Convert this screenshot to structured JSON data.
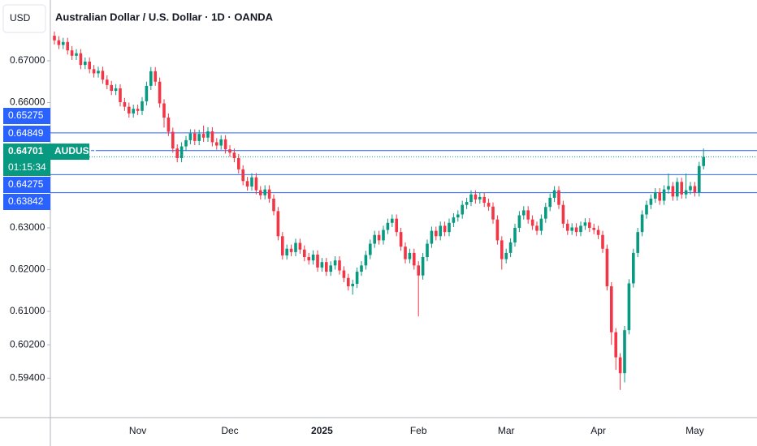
{
  "chart_data": {
    "type": "candlestick",
    "title": "Australian Dollar / U.S. Dollar · 1D · OANDA",
    "currency": "USD",
    "symbol": "AUDUSD",
    "countdown": "01:15:34",
    "up_color": "#089981",
    "down_color": "#f23645",
    "level_color": "#2962ff",
    "grid": false,
    "categories": [
      null,
      null,
      null,
      null,
      null,
      null,
      null,
      null,
      null,
      null,
      null,
      null,
      null,
      null,
      null,
      null,
      null,
      null,
      null,
      "Nov",
      null,
      null,
      null,
      null,
      null,
      null,
      null,
      null,
      null,
      null,
      null,
      null,
      null,
      null,
      null,
      null,
      null,
      null,
      null,
      null,
      "Dec",
      null,
      null,
      null,
      null,
      null,
      null,
      null,
      null,
      null,
      null,
      null,
      null,
      null,
      null,
      null,
      null,
      null,
      null,
      null,
      null,
      "2025",
      null,
      null,
      null,
      null,
      null,
      null,
      null,
      null,
      null,
      null,
      null,
      null,
      null,
      null,
      null,
      null,
      null,
      null,
      null,
      null,
      null,
      "Feb",
      null,
      null,
      null,
      null,
      null,
      null,
      null,
      null,
      null,
      null,
      null,
      null,
      null,
      null,
      null,
      null,
      null,
      null,
      null,
      "Mar",
      null,
      null,
      null,
      null,
      null,
      null,
      null,
      null,
      null,
      null,
      null,
      null,
      null,
      null,
      null,
      null,
      null,
      null,
      null,
      null,
      "Apr",
      null,
      null,
      null,
      null,
      null,
      null,
      null,
      null,
      null,
      null,
      null,
      null,
      null,
      null,
      null,
      null,
      null,
      null,
      null,
      null,
      null,
      "May",
      null,
      null
    ],
    "open": [
      0.676,
      0.6749,
      0.6738,
      0.6745,
      0.6725,
      0.6712,
      0.6718,
      0.669,
      0.6698,
      0.668,
      0.667,
      0.6676,
      0.6655,
      0.6642,
      0.6628,
      0.6634,
      0.6601,
      0.659,
      0.6574,
      0.6585,
      0.658,
      0.6603,
      0.664,
      0.6675,
      0.665,
      0.6598,
      0.6564,
      0.653,
      0.649,
      0.6467,
      0.6495,
      0.651,
      0.6526,
      0.6508,
      0.6525,
      0.6516,
      0.6531,
      0.6505,
      0.6497,
      0.6512,
      0.6488,
      0.648,
      0.6467,
      0.644,
      0.6412,
      0.6399,
      0.6421,
      0.639,
      0.6378,
      0.6392,
      0.637,
      0.634,
      0.628,
      0.6234,
      0.625,
      0.6242,
      0.6264,
      0.6248,
      0.623,
      0.6222,
      0.6236,
      0.6205,
      0.6218,
      0.6195,
      0.621,
      0.6222,
      0.6198,
      0.618,
      0.616,
      0.6166,
      0.6195,
      0.621,
      0.6235,
      0.6262,
      0.6283,
      0.627,
      0.6295,
      0.6312,
      0.6322,
      0.629,
      0.6255,
      0.6225,
      0.624,
      0.621,
      0.6186,
      0.623,
      0.6262,
      0.6293,
      0.628,
      0.6305,
      0.629,
      0.6312,
      0.6325,
      0.6332,
      0.6355,
      0.6362,
      0.638,
      0.6368,
      0.6374,
      0.636,
      0.6351,
      0.632,
      0.627,
      0.6225,
      0.624,
      0.6265,
      0.63,
      0.633,
      0.6342,
      0.632,
      0.6305,
      0.6293,
      0.6322,
      0.635,
      0.6372,
      0.639,
      0.6355,
      0.631,
      0.6293,
      0.6301,
      0.629,
      0.6305,
      0.6313,
      0.63,
      0.6295,
      0.6283,
      0.625,
      0.616,
      0.605,
      0.599,
      0.5952,
      0.6055,
      0.6167,
      0.624,
      0.629,
      0.6332,
      0.6355,
      0.637,
      0.6385,
      0.6365,
      0.6392,
      0.64,
      0.6375,
      0.641,
      0.638,
      0.639,
      0.64,
      0.6385,
      0.6448
    ],
    "high": [
      0.677,
      0.6759,
      0.6755,
      0.6755,
      0.6735,
      0.6728,
      0.6728,
      0.6708,
      0.6708,
      0.669,
      0.6686,
      0.6686,
      0.6665,
      0.6652,
      0.6644,
      0.6644,
      0.6611,
      0.66,
      0.6595,
      0.6595,
      0.6613,
      0.665,
      0.6685,
      0.6685,
      0.666,
      0.6608,
      0.6574,
      0.654,
      0.65,
      0.6505,
      0.652,
      0.6536,
      0.6536,
      0.6535,
      0.6545,
      0.6541,
      0.6541,
      0.6515,
      0.6522,
      0.6522,
      0.6498,
      0.649,
      0.6477,
      0.645,
      0.6422,
      0.6431,
      0.6431,
      0.64,
      0.6402,
      0.6402,
      0.638,
      0.635,
      0.629,
      0.626,
      0.626,
      0.6274,
      0.6274,
      0.6258,
      0.624,
      0.6246,
      0.6246,
      0.6228,
      0.6228,
      0.622,
      0.6232,
      0.6232,
      0.6208,
      0.619,
      0.6176,
      0.6205,
      0.622,
      0.6245,
      0.6272,
      0.6293,
      0.6293,
      0.6305,
      0.6322,
      0.6332,
      0.6332,
      0.63,
      0.6265,
      0.625,
      0.625,
      0.622,
      0.624,
      0.6272,
      0.6303,
      0.6303,
      0.6315,
      0.6315,
      0.6322,
      0.6335,
      0.6342,
      0.6365,
      0.6372,
      0.639,
      0.639,
      0.6384,
      0.6384,
      0.637,
      0.6361,
      0.633,
      0.628,
      0.625,
      0.6275,
      0.631,
      0.634,
      0.6352,
      0.6352,
      0.633,
      0.6315,
      0.6332,
      0.636,
      0.6382,
      0.64,
      0.64,
      0.6365,
      0.632,
      0.6311,
      0.6311,
      0.6315,
      0.6323,
      0.6323,
      0.631,
      0.6305,
      0.6293,
      0.626,
      0.617,
      0.606,
      0.6,
      0.6065,
      0.6177,
      0.625,
      0.63,
      0.6342,
      0.6365,
      0.638,
      0.6395,
      0.6395,
      0.6402,
      0.643,
      0.641,
      0.642,
      0.642,
      0.643,
      0.641,
      0.641,
      0.6458,
      0.649
    ],
    "low": [
      0.6739,
      0.6728,
      0.6728,
      0.6715,
      0.6702,
      0.6702,
      0.668,
      0.668,
      0.667,
      0.666,
      0.666,
      0.6645,
      0.6632,
      0.6618,
      0.6618,
      0.6591,
      0.658,
      0.6564,
      0.6564,
      0.657,
      0.657,
      0.6593,
      0.663,
      0.664,
      0.6588,
      0.654,
      0.652,
      0.648,
      0.6457,
      0.6457,
      0.6485,
      0.65,
      0.6498,
      0.6498,
      0.6506,
      0.6506,
      0.6495,
      0.6487,
      0.6487,
      0.6478,
      0.647,
      0.6457,
      0.643,
      0.6402,
      0.6389,
      0.6389,
      0.638,
      0.6368,
      0.6368,
      0.636,
      0.633,
      0.627,
      0.6224,
      0.6224,
      0.6232,
      0.6232,
      0.6238,
      0.622,
      0.6212,
      0.6212,
      0.6195,
      0.6195,
      0.6185,
      0.6185,
      0.62,
      0.6188,
      0.617,
      0.615,
      0.614,
      0.6156,
      0.6185,
      0.62,
      0.6225,
      0.6252,
      0.626,
      0.626,
      0.6285,
      0.6302,
      0.628,
      0.6245,
      0.6215,
      0.6215,
      0.62,
      0.6088,
      0.6176,
      0.622,
      0.6252,
      0.627,
      0.627,
      0.628,
      0.628,
      0.6302,
      0.6315,
      0.6322,
      0.6345,
      0.6352,
      0.6358,
      0.6358,
      0.635,
      0.6341,
      0.631,
      0.626,
      0.62,
      0.6215,
      0.623,
      0.6255,
      0.629,
      0.632,
      0.631,
      0.6295,
      0.6283,
      0.6283,
      0.6312,
      0.634,
      0.6362,
      0.6345,
      0.63,
      0.6283,
      0.6283,
      0.628,
      0.628,
      0.6295,
      0.629,
      0.6285,
      0.6273,
      0.624,
      0.615,
      0.602,
      0.596,
      0.5912,
      0.593,
      0.6045,
      0.6157,
      0.623,
      0.628,
      0.6322,
      0.6345,
      0.636,
      0.6355,
      0.6355,
      0.6382,
      0.6365,
      0.6365,
      0.637,
      0.637,
      0.638,
      0.6375,
      0.6375,
      0.644
    ],
    "close": [
      0.6749,
      0.6738,
      0.6745,
      0.6725,
      0.6712,
      0.6718,
      0.669,
      0.6698,
      0.668,
      0.667,
      0.6676,
      0.6655,
      0.6642,
      0.6628,
      0.6634,
      0.6601,
      0.659,
      0.6574,
      0.6585,
      0.658,
      0.6603,
      0.664,
      0.6675,
      0.665,
      0.6598,
      0.6564,
      0.653,
      0.649,
      0.6467,
      0.6495,
      0.651,
      0.6526,
      0.6508,
      0.6525,
      0.6516,
      0.6531,
      0.6505,
      0.6497,
      0.6512,
      0.6488,
      0.648,
      0.6467,
      0.644,
      0.6412,
      0.6399,
      0.6421,
      0.639,
      0.6378,
      0.6392,
      0.637,
      0.634,
      0.628,
      0.6234,
      0.625,
      0.6242,
      0.6264,
      0.6248,
      0.623,
      0.6222,
      0.6236,
      0.6205,
      0.6218,
      0.6195,
      0.621,
      0.6222,
      0.6198,
      0.618,
      0.616,
      0.6166,
      0.6195,
      0.621,
      0.6235,
      0.6262,
      0.6283,
      0.627,
      0.6295,
      0.6312,
      0.6322,
      0.629,
      0.6255,
      0.6225,
      0.624,
      0.621,
      0.6186,
      0.623,
      0.6262,
      0.6293,
      0.628,
      0.6305,
      0.629,
      0.6312,
      0.6325,
      0.6332,
      0.6355,
      0.6362,
      0.638,
      0.6368,
      0.6374,
      0.636,
      0.6351,
      0.632,
      0.627,
      0.6225,
      0.624,
      0.6265,
      0.63,
      0.633,
      0.6342,
      0.632,
      0.6305,
      0.6293,
      0.6322,
      0.635,
      0.6372,
      0.639,
      0.6355,
      0.631,
      0.6293,
      0.6301,
      0.629,
      0.6305,
      0.6313,
      0.63,
      0.6295,
      0.6283,
      0.625,
      0.616,
      0.605,
      0.599,
      0.5952,
      0.6055,
      0.6167,
      0.624,
      0.629,
      0.6332,
      0.6355,
      0.637,
      0.6385,
      0.6365,
      0.6392,
      0.64,
      0.6375,
      0.641,
      0.638,
      0.639,
      0.64,
      0.6385,
      0.6448,
      0.647
    ],
    "ylim": [
      0.58456,
      0.68456
    ],
    "yticks": [
      {
        "value": 0.67,
        "label": "0.67000"
      },
      {
        "value": 0.66,
        "label": "0.66000"
      },
      {
        "value": 0.63,
        "label": "0.63000"
      },
      {
        "value": 0.62,
        "label": "0.62000"
      },
      {
        "value": 0.61,
        "label": "0.61000"
      },
      {
        "value": 0.602,
        "label": "0.60200"
      },
      {
        "value": 0.594,
        "label": "0.59400"
      }
    ],
    "levels": [
      {
        "value": 0.65275,
        "label": "0.65275"
      },
      {
        "value": 0.64849,
        "label": "0.64849"
      },
      {
        "value": 0.64275,
        "label": "0.64275"
      },
      {
        "value": 0.63842,
        "label": "0.63842"
      }
    ],
    "current": {
      "value": 0.64701,
      "label": "0.64701"
    }
  }
}
